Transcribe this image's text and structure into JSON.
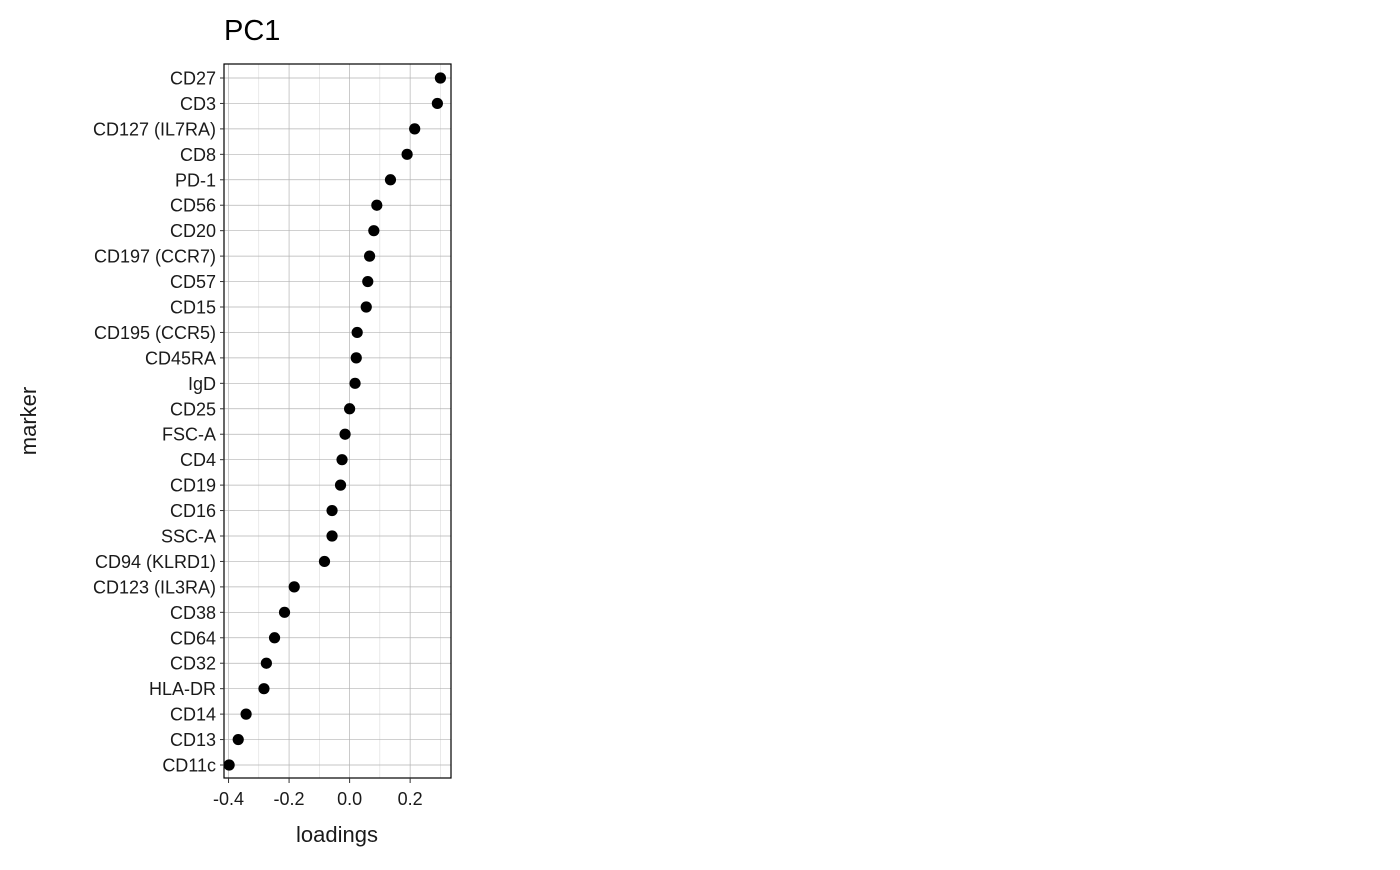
{
  "chart_data": {
    "type": "scatter",
    "title": "PC1",
    "xlabel": "loadings",
    "ylabel": "marker",
    "xlim": [
      -0.415,
      0.335
    ],
    "x_ticks": [
      -0.4,
      -0.2,
      0.0,
      0.2
    ],
    "x_tick_labels": [
      "-0.4",
      "-0.2",
      "0.0",
      "0.2"
    ],
    "grid": true,
    "legend": "none",
    "point_color": "#000000",
    "grid_color": "#b3b3b3",
    "markers": [
      "CD27",
      "CD3",
      "CD127 (IL7RA)",
      "CD8",
      "PD-1",
      "CD56",
      "CD20",
      "CD197 (CCR7)",
      "CD57",
      "CD15",
      "CD195 (CCR5)",
      "CD45RA",
      "IgD",
      "CD25",
      "FSC-A",
      "CD4",
      "CD19",
      "CD16",
      "SSC-A",
      "CD94 (KLRD1)",
      "CD123 (IL3RA)",
      "CD38",
      "CD64",
      "CD32",
      "HLA-DR",
      "CD14",
      "CD13",
      "CD11c"
    ],
    "loadings": [
      0.3,
      0.29,
      0.215,
      0.19,
      0.135,
      0.09,
      0.08,
      0.066,
      0.06,
      0.055,
      0.025,
      0.022,
      0.018,
      0.0,
      -0.015,
      -0.025,
      -0.03,
      -0.058,
      -0.058,
      -0.083,
      -0.183,
      -0.215,
      -0.248,
      -0.275,
      -0.283,
      -0.342,
      -0.368,
      -0.398
    ]
  }
}
